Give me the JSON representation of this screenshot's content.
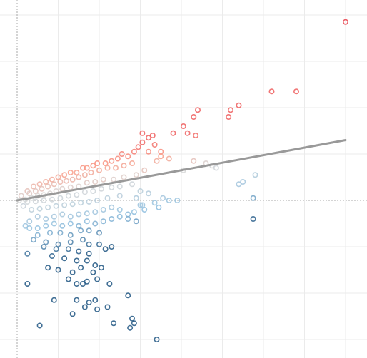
{
  "chart_data": {
    "type": "scatter",
    "title": "",
    "xlabel": "",
    "ylabel": "",
    "xlim": [
      -0.5,
      8.5
    ],
    "ylim": [
      -3.1,
      4.3
    ],
    "grid": true,
    "legend": "none",
    "colors": {
      "positive": "#e8414f",
      "negative": "#2c5f8a",
      "neutral": "#d9d9d9",
      "fit_line": "#999999",
      "grid": "#ebebeb",
      "axis": "#aaaaaa"
    },
    "fit_line": {
      "x": [
        0.0,
        8.0
      ],
      "y": [
        0.0,
        1.3
      ]
    },
    "points": [
      [
        8.0,
        3.85
      ],
      [
        6.8,
        2.35
      ],
      [
        6.2,
        2.35
      ],
      [
        5.4,
        2.05
      ],
      [
        5.2,
        1.95
      ],
      [
        5.15,
        1.8
      ],
      [
        4.4,
        1.95
      ],
      [
        4.3,
        1.8
      ],
      [
        4.15,
        1.45
      ],
      [
        4.35,
        1.4
      ],
      [
        4.05,
        1.6
      ],
      [
        3.8,
        1.45
      ],
      [
        3.05,
        1.45
      ],
      [
        3.3,
        1.4
      ],
      [
        3.2,
        1.35
      ],
      [
        3.35,
        1.2
      ],
      [
        3.5,
        1.05
      ],
      [
        3.2,
        1.05
      ],
      [
        3.5,
        0.95
      ],
      [
        3.05,
        1.25
      ],
      [
        2.95,
        1.15
      ],
      [
        2.85,
        1.05
      ],
      [
        2.7,
        0.95
      ],
      [
        2.55,
        1.0
      ],
      [
        2.45,
        0.9
      ],
      [
        2.3,
        0.85
      ],
      [
        2.15,
        0.8
      ],
      [
        1.95,
        0.8
      ],
      [
        1.85,
        0.75
      ],
      [
        1.7,
        0.7
      ],
      [
        1.6,
        0.7
      ],
      [
        1.45,
        0.6
      ],
      [
        1.3,
        0.6
      ],
      [
        1.15,
        0.55
      ],
      [
        1.0,
        0.5
      ],
      [
        0.85,
        0.45
      ],
      [
        0.7,
        0.4
      ],
      [
        0.55,
        0.35
      ],
      [
        0.4,
        0.3
      ],
      [
        0.25,
        0.2
      ],
      [
        0.1,
        0.1
      ],
      [
        2.8,
        0.8
      ],
      [
        2.6,
        0.75
      ],
      [
        2.4,
        0.7
      ],
      [
        2.2,
        0.7
      ],
      [
        2.0,
        0.65
      ],
      [
        1.8,
        0.6
      ],
      [
        1.65,
        0.55
      ],
      [
        1.5,
        0.5
      ],
      [
        1.35,
        0.45
      ],
      [
        1.2,
        0.42
      ],
      [
        1.05,
        0.4
      ],
      [
        0.9,
        0.35
      ],
      [
        0.75,
        0.3
      ],
      [
        0.6,
        0.25
      ],
      [
        0.45,
        0.2
      ],
      [
        0.3,
        0.15
      ],
      [
        3.4,
        0.85
      ],
      [
        3.7,
        0.9
      ],
      [
        4.3,
        0.85
      ],
      [
        4.6,
        0.8
      ],
      [
        4.75,
        0.75
      ],
      [
        4.85,
        0.7
      ],
      [
        4.05,
        0.65
      ],
      [
        3.1,
        0.65
      ],
      [
        2.9,
        0.55
      ],
      [
        2.6,
        0.5
      ],
      [
        2.35,
        0.45
      ],
      [
        2.1,
        0.45
      ],
      [
        1.9,
        0.4
      ],
      [
        1.7,
        0.38
      ],
      [
        1.5,
        0.3
      ],
      [
        1.3,
        0.28
      ],
      [
        1.1,
        0.25
      ],
      [
        0.95,
        0.2
      ],
      [
        0.8,
        0.15
      ],
      [
        0.65,
        0.12
      ],
      [
        0.5,
        0.1
      ],
      [
        0.35,
        0.05
      ],
      [
        0.2,
        0.02
      ],
      [
        2.8,
        0.35
      ],
      [
        2.5,
        0.3
      ],
      [
        2.3,
        0.28
      ],
      [
        2.05,
        0.25
      ],
      [
        1.85,
        0.2
      ],
      [
        1.65,
        0.18
      ],
      [
        1.45,
        0.12
      ],
      [
        1.25,
        0.1
      ],
      [
        1.05,
        0.05
      ],
      [
        0.85,
        0.02
      ],
      [
        0.65,
        0.0
      ],
      [
        0.45,
        -0.02
      ],
      [
        0.25,
        -0.03
      ],
      [
        0.05,
        0.0
      ],
      [
        3.0,
        0.2
      ],
      [
        3.2,
        0.15
      ],
      [
        2.9,
        0.05
      ],
      [
        2.5,
        0.1
      ],
      [
        2.2,
        0.05
      ],
      [
        1.95,
        0.0
      ],
      [
        1.75,
        -0.03
      ],
      [
        1.55,
        -0.05
      ],
      [
        1.35,
        -0.08
      ],
      [
        1.15,
        -0.1
      ],
      [
        0.95,
        -0.12
      ],
      [
        0.75,
        -0.15
      ],
      [
        0.55,
        -0.18
      ],
      [
        0.35,
        -0.2
      ],
      [
        0.15,
        -0.12
      ],
      [
        5.4,
        0.35
      ],
      [
        5.5,
        0.4
      ],
      [
        5.8,
        0.55
      ],
      [
        5.75,
        0.05
      ],
      [
        5.75,
        -0.4
      ],
      [
        3.7,
        0.0
      ],
      [
        3.55,
        0.05
      ],
      [
        3.9,
        0.0
      ],
      [
        3.35,
        -0.05
      ],
      [
        3.45,
        -0.15
      ],
      [
        3.0,
        -0.1
      ],
      [
        3.1,
        -0.2
      ],
      [
        2.85,
        -0.25
      ],
      [
        2.7,
        -0.3
      ],
      [
        2.5,
        -0.2
      ],
      [
        2.3,
        -0.15
      ],
      [
        2.1,
        -0.2
      ],
      [
        1.9,
        -0.25
      ],
      [
        1.7,
        -0.28
      ],
      [
        1.5,
        -0.3
      ],
      [
        1.3,
        -0.35
      ],
      [
        1.1,
        -0.3
      ],
      [
        0.9,
        -0.35
      ],
      [
        0.7,
        -0.4
      ],
      [
        0.5,
        -0.35
      ],
      [
        0.3,
        -0.45
      ],
      [
        0.2,
        -0.55
      ],
      [
        0.3,
        -0.6
      ],
      [
        0.5,
        -0.6
      ],
      [
        0.7,
        -0.55
      ],
      [
        0.9,
        -0.5
      ],
      [
        1.1,
        -0.55
      ],
      [
        1.3,
        -0.5
      ],
      [
        1.5,
        -0.55
      ],
      [
        1.7,
        -0.45
      ],
      [
        1.9,
        -0.5
      ],
      [
        2.1,
        -0.45
      ],
      [
        2.3,
        -0.4
      ],
      [
        2.5,
        -0.35
      ],
      [
        2.7,
        -0.4
      ],
      [
        2.9,
        -0.45
      ],
      [
        3.05,
        -0.1
      ],
      [
        0.5,
        -0.75
      ],
      [
        0.8,
        -0.7
      ],
      [
        1.05,
        -0.7
      ],
      [
        1.3,
        -0.75
      ],
      [
        1.55,
        -0.65
      ],
      [
        1.75,
        -0.65
      ],
      [
        0.4,
        -0.85
      ],
      [
        0.7,
        -0.9
      ],
      [
        1.0,
        -0.95
      ],
      [
        1.3,
        -0.9
      ],
      [
        1.6,
        -0.85
      ],
      [
        2.0,
        -0.7
      ],
      [
        2.0,
        -0.95
      ],
      [
        2.15,
        -1.05
      ],
      [
        2.3,
        -1.0
      ],
      [
        1.75,
        -0.95
      ],
      [
        0.25,
        -1.15
      ],
      [
        0.65,
        -1.0
      ],
      [
        0.95,
        -1.05
      ],
      [
        1.25,
        -1.05
      ],
      [
        1.5,
        -1.1
      ],
      [
        1.75,
        -1.15
      ],
      [
        0.85,
        -1.2
      ],
      [
        1.15,
        -1.25
      ],
      [
        1.45,
        -1.3
      ],
      [
        1.7,
        -1.3
      ],
      [
        1.9,
        -1.4
      ],
      [
        1.85,
        -1.55
      ],
      [
        2.05,
        -1.45
      ],
      [
        1.95,
        -1.7
      ],
      [
        1.7,
        -1.75
      ],
      [
        1.25,
        -1.7
      ],
      [
        1.45,
        -1.8
      ],
      [
        1.6,
        -1.8
      ],
      [
        2.25,
        -1.8
      ],
      [
        1.0,
        -1.5
      ],
      [
        0.75,
        -1.45
      ],
      [
        1.35,
        -1.55
      ],
      [
        1.55,
        -1.45
      ],
      [
        0.25,
        -1.8
      ],
      [
        0.9,
        -2.15
      ],
      [
        1.45,
        -2.15
      ],
      [
        1.75,
        -2.2
      ],
      [
        1.65,
        -2.3
      ],
      [
        1.9,
        -2.15
      ],
      [
        1.95,
        -2.35
      ],
      [
        2.2,
        -2.3
      ],
      [
        2.7,
        -2.05
      ],
      [
        2.85,
        -2.65
      ],
      [
        2.75,
        -2.75
      ],
      [
        2.8,
        -2.55
      ],
      [
        1.35,
        -2.45
      ],
      [
        2.35,
        -2.65
      ],
      [
        0.55,
        -2.7
      ],
      [
        3.4,
        -3.0
      ]
    ]
  }
}
